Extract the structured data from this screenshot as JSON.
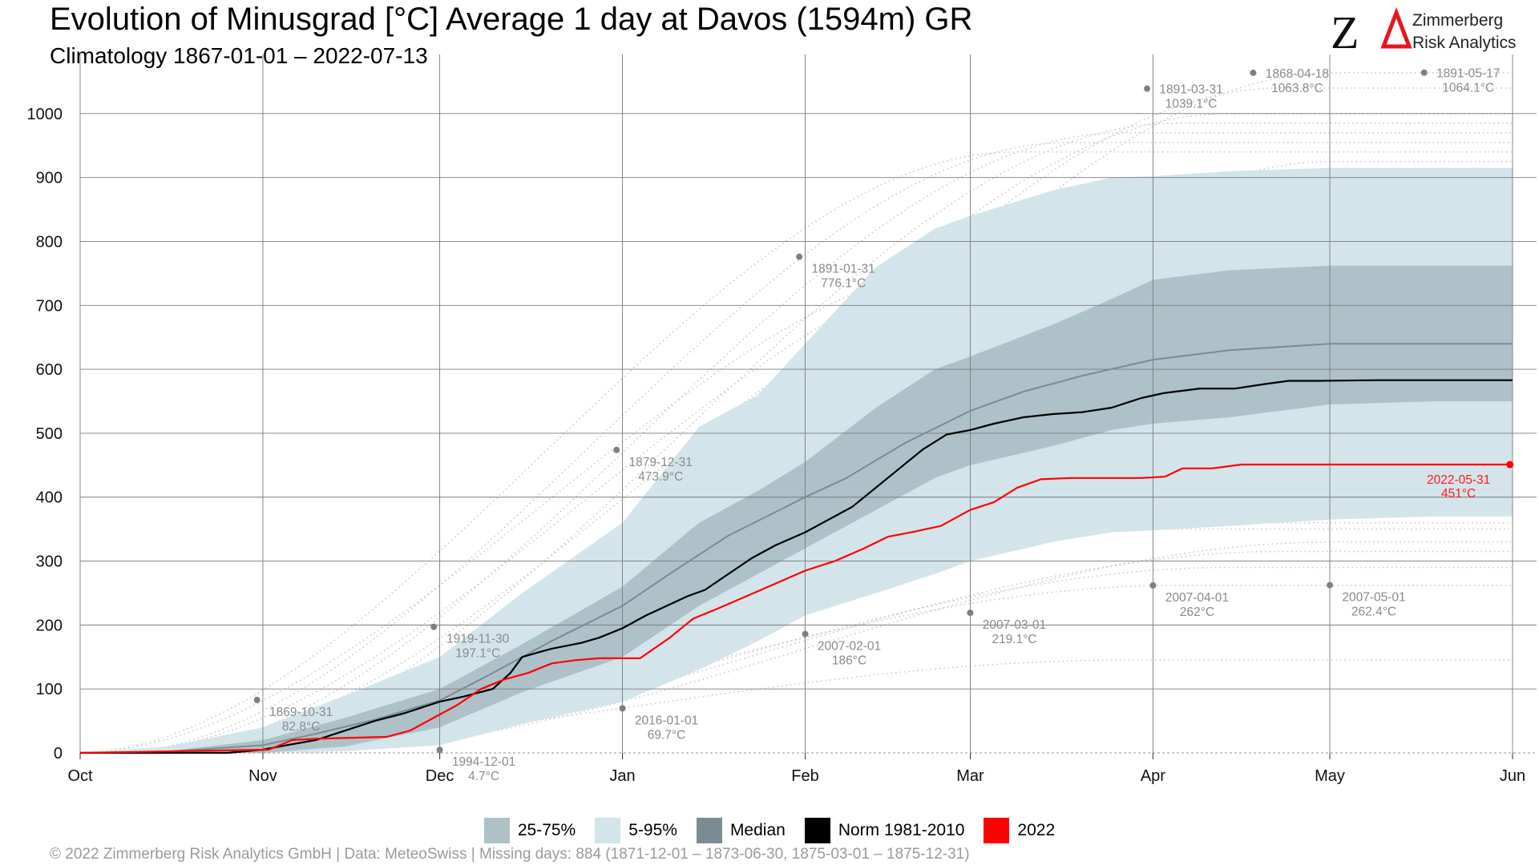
{
  "header": {
    "title": "Evolution of Minusgrad [°C] Average 1 day at Davos (1594m) GR",
    "subtitle": "Climatology 1867-01-01 – 2022-07-13"
  },
  "logo": {
    "mark": "ZΔ",
    "line1": "Zimmerberg",
    "line2": "Risk Analytics",
    "colors": {
      "z": "#111111",
      "delta": "#e8141e"
    }
  },
  "legend": {
    "items": [
      {
        "label": "25-75%",
        "color": "#aec1c9"
      },
      {
        "label": "5-95%",
        "color": "#d3e4ea"
      },
      {
        "label": "Median",
        "color": "#7a8b93"
      },
      {
        "label": "Norm 1981-2010",
        "color": "#000000"
      },
      {
        "label": "2022",
        "color": "#ff0000"
      }
    ]
  },
  "footer": "©  2022 Zimmerberg Risk Analytics GmbH | Data: MeteoSwiss | Missing days: 884 (1871-12-01 – 1873-06-30, 1875-03-01 – 1875-12-31)",
  "chart_data": {
    "type": "area",
    "x_unit": "day of season (0 = Oct 1)",
    "xlim": [
      0,
      243
    ],
    "ylim": [
      0,
      1080
    ],
    "grid": true,
    "legend_position": "bottom",
    "x_ticks": [
      {
        "label": "Oct",
        "day": 0
      },
      {
        "label": "Nov",
        "day": 31
      },
      {
        "label": "Dec",
        "day": 61
      },
      {
        "label": "Jan",
        "day": 92
      },
      {
        "label": "Feb",
        "day": 123
      },
      {
        "label": "Mar",
        "day": 151
      },
      {
        "label": "Apr",
        "day": 182
      },
      {
        "label": "May",
        "day": 212
      },
      {
        "label": "Jun",
        "day": 243
      }
    ],
    "y_ticks": [
      0,
      100,
      200,
      300,
      400,
      500,
      600,
      700,
      800,
      900,
      1000
    ],
    "bands": [
      {
        "name": "5-95%",
        "color": "#d3e4ea",
        "x": [
          0,
          15,
          31,
          45,
          61,
          75,
          92,
          105,
          115,
          123,
          135,
          145,
          151,
          165,
          175,
          182,
          195,
          212,
          230,
          243
        ],
        "upper": [
          0,
          10,
          40,
          90,
          150,
          250,
          360,
          510,
          560,
          640,
          760,
          820,
          840,
          880,
          900,
          902,
          910,
          915,
          915,
          915
        ],
        "lower": [
          0,
          0,
          0,
          3,
          12,
          45,
          80,
          130,
          175,
          215,
          250,
          280,
          300,
          330,
          345,
          348,
          355,
          365,
          370,
          370
        ]
      },
      {
        "name": "25-75%",
        "color": "#aec1c9",
        "x": [
          0,
          15,
          31,
          45,
          61,
          75,
          92,
          105,
          115,
          123,
          135,
          145,
          151,
          165,
          175,
          182,
          195,
          212,
          230,
          243
        ],
        "upper": [
          0,
          3,
          20,
          55,
          100,
          170,
          260,
          360,
          410,
          455,
          540,
          600,
          620,
          670,
          710,
          740,
          755,
          762,
          762,
          762
        ],
        "lower": [
          0,
          0,
          0,
          10,
          40,
          95,
          150,
          230,
          280,
          320,
          380,
          430,
          450,
          480,
          505,
          515,
          525,
          545,
          550,
          550
        ]
      }
    ],
    "series": [
      {
        "name": "Median",
        "color": "#7a8b93",
        "x": [
          0,
          15,
          31,
          40,
          50,
          61,
          70,
          80,
          92,
          100,
          110,
          123,
          130,
          140,
          151,
          160,
          170,
          182,
          195,
          212,
          230,
          243
        ],
        "values": [
          0,
          2,
          12,
          30,
          52,
          82,
          125,
          175,
          230,
          280,
          340,
          400,
          430,
          485,
          535,
          565,
          590,
          615,
          630,
          640,
          640,
          640
        ]
      },
      {
        "name": "Norm 1981-2010",
        "color": "#000000",
        "x": [
          0,
          25,
          31,
          35,
          40,
          45,
          50,
          55,
          61,
          65,
          70,
          73,
          75,
          78,
          80,
          85,
          88,
          92,
          96,
          100,
          103,
          106,
          110,
          114,
          118,
          123,
          127,
          131,
          135,
          139,
          143,
          147,
          151,
          155,
          160,
          165,
          170,
          175,
          180,
          184,
          190,
          196,
          201,
          205,
          210,
          220,
          230,
          243
        ],
        "values": [
          0,
          0,
          5,
          12,
          20,
          35,
          50,
          62,
          80,
          88,
          100,
          125,
          150,
          158,
          163,
          172,
          180,
          195,
          215,
          232,
          245,
          255,
          280,
          305,
          325,
          345,
          365,
          385,
          415,
          445,
          475,
          498,
          505,
          515,
          525,
          530,
          533,
          540,
          555,
          563,
          570,
          570,
          577,
          582,
          582,
          583,
          583,
          583
        ]
      },
      {
        "name": "2022",
        "color": "#ff0000",
        "x": [
          0,
          32,
          36,
          40,
          52,
          56,
          60,
          64,
          68,
          72,
          76,
          80,
          84,
          88,
          95,
          100,
          104,
          108,
          113,
          118,
          123,
          128,
          133,
          137,
          141,
          146,
          151,
          155,
          159,
          163,
          168,
          175,
          180,
          184,
          187,
          192,
          197,
          205,
          215,
          230,
          243
        ],
        "values": [
          0,
          5,
          20,
          22,
          25,
          35,
          55,
          75,
          100,
          115,
          125,
          140,
          145,
          148,
          148,
          180,
          210,
          225,
          245,
          265,
          285,
          300,
          320,
          338,
          345,
          355,
          380,
          392,
          415,
          428,
          430,
          430,
          430,
          432,
          445,
          445,
          451,
          451,
          451,
          451,
          451
        ]
      }
    ],
    "extreme_points": [
      {
        "day": 30,
        "value": 82.8,
        "date": "1869-10-31",
        "text": "82.8°C"
      },
      {
        "day": 60,
        "value": 197.1,
        "date": "1919-11-30",
        "text": "197.1°C"
      },
      {
        "day": 61,
        "value": 4.7,
        "date": "1994-12-01",
        "text": "4.7°C"
      },
      {
        "day": 91,
        "value": 473.9,
        "date": "1879-12-31",
        "text": "473.9°C"
      },
      {
        "day": 92,
        "value": 69.7,
        "date": "2016-01-01",
        "text": "69.7°C"
      },
      {
        "day": 122,
        "value": 776.1,
        "date": "1891-01-31",
        "text": "776.1°C"
      },
      {
        "day": 123,
        "value": 186,
        "date": "2007-02-01",
        "text": "186°C"
      },
      {
        "day": 151,
        "value": 219.1,
        "date": "2007-03-01",
        "text": "219.1°C"
      },
      {
        "day": 181,
        "value": 1039.1,
        "date": "1891-03-31",
        "text": "1039.1°C"
      },
      {
        "day": 182,
        "value": 262,
        "date": "2007-04-01",
        "text": "262°C"
      },
      {
        "day": 199,
        "value": 1063.8,
        "date": "1868-04-18",
        "text": "1063.8°C"
      },
      {
        "day": 212,
        "value": 262.4,
        "date": "2007-05-01",
        "text": "262.4°C"
      },
      {
        "day": 228,
        "value": 1064.1,
        "date": "1891-05-17",
        "text": "1064.1°C"
      }
    ],
    "current_point": {
      "day": 242,
      "value": 451,
      "date": "2022-05-31",
      "text": "451°C",
      "color": "#ff0000"
    },
    "historic_traces": {
      "color": "#c8c8c8",
      "style": "dotted",
      "final_values": [
        1064,
        1040,
        1000,
        985,
        970,
        955,
        940,
        925,
        890,
        870,
        850,
        820,
        800,
        780,
        700,
        660,
        560,
        480,
        440,
        360,
        350,
        330,
        315,
        290,
        262,
        145
      ]
    }
  }
}
